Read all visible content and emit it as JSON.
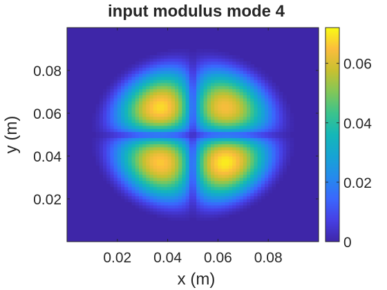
{
  "chart_data": {
    "type": "heatmap",
    "title": "input modulus mode 4",
    "xlabel": "x (m)",
    "ylabel": "y (m)",
    "xlim": [
      0,
      0.1
    ],
    "ylim": [
      0,
      0.1
    ],
    "xticks": [
      0.02,
      0.04,
      0.06,
      0.08
    ],
    "yticks": [
      0.02,
      0.04,
      0.06,
      0.08
    ],
    "xtick_labels": [
      "0.02",
      "0.04",
      "0.06",
      "0.08"
    ],
    "ytick_labels": [
      "0.02",
      "0.04",
      "0.06",
      "0.08"
    ],
    "colorbar": {
      "colormap": "parula",
      "range": [
        0,
        0.072
      ],
      "ticks": [
        0,
        0.02,
        0.04,
        0.06
      ],
      "tick_labels": [
        "0",
        "0.02",
        "0.04",
        "0.06"
      ]
    },
    "field": {
      "description_of_pattern": "four lobes separated by horizontal and vertical nodal lines",
      "lobes": [
        {
          "quadrant": "upper-left",
          "x": 0.038,
          "y": 0.062,
          "peak": 0.068
        },
        {
          "quadrant": "upper-right",
          "x": 0.062,
          "y": 0.062,
          "peak": 0.064
        },
        {
          "quadrant": "lower-left",
          "x": 0.038,
          "y": 0.037,
          "peak": 0.066
        },
        {
          "quadrant": "lower-right",
          "x": 0.062,
          "y": 0.037,
          "peak": 0.07
        }
      ],
      "nodal_lines": {
        "x": 0.05,
        "y": 0.05
      },
      "support_radius": 0.042,
      "center": [
        0.05,
        0.05
      ]
    }
  }
}
